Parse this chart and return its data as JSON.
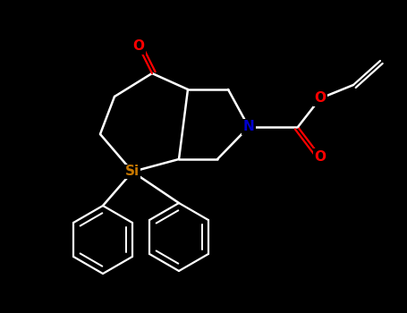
{
  "background_color": "#000000",
  "bond_color": "#ffffff",
  "atom_colors": {
    "O": "#ff0000",
    "N": "#0000cd",
    "Si": "#c87800",
    "C": "#ffffff"
  },
  "fig_width": 4.55,
  "fig_height": 3.5,
  "dpi": 100
}
